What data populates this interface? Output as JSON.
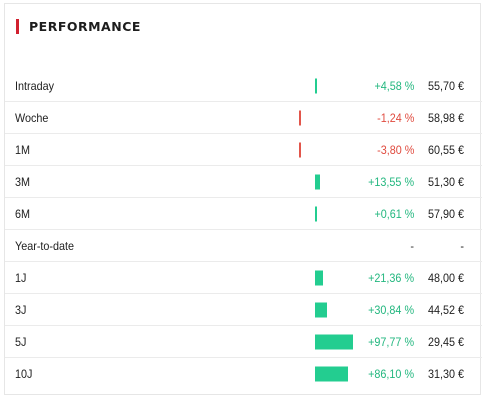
{
  "header": {
    "title": "PERFORMANCE"
  },
  "colors": {
    "accent": "#d1202f",
    "positive": "#23cd90",
    "negative": "#e2564b"
  },
  "rows": [
    {
      "label": "Intraday",
      "change": "+4,58 %",
      "price": "55,70 €",
      "value": 4.58
    },
    {
      "label": "Woche",
      "change": "-1,24 %",
      "price": "58,98 €",
      "value": -1.24
    },
    {
      "label": "1M",
      "change": "-3,80 %",
      "price": "60,55 €",
      "value": -3.8
    },
    {
      "label": "3M",
      "change": "+13,55 %",
      "price": "51,30 €",
      "value": 13.55
    },
    {
      "label": "6M",
      "change": "+0,61 %",
      "price": "57,90 €",
      "value": 0.61
    },
    {
      "label": "Year-to-date",
      "change": "-",
      "price": "-",
      "value": null
    },
    {
      "label": "1J",
      "change": "+21,36 %",
      "price": "48,00 €",
      "value": 21.36
    },
    {
      "label": "3J",
      "change": "+30,84 %",
      "price": "44,52 €",
      "value": 30.84
    },
    {
      "label": "5J",
      "change": "+97,77 %",
      "price": "29,45 €",
      "value": 97.77
    },
    {
      "label": "10J",
      "change": "+86,10 %",
      "price": "31,30 €",
      "value": 86.1
    }
  ]
}
